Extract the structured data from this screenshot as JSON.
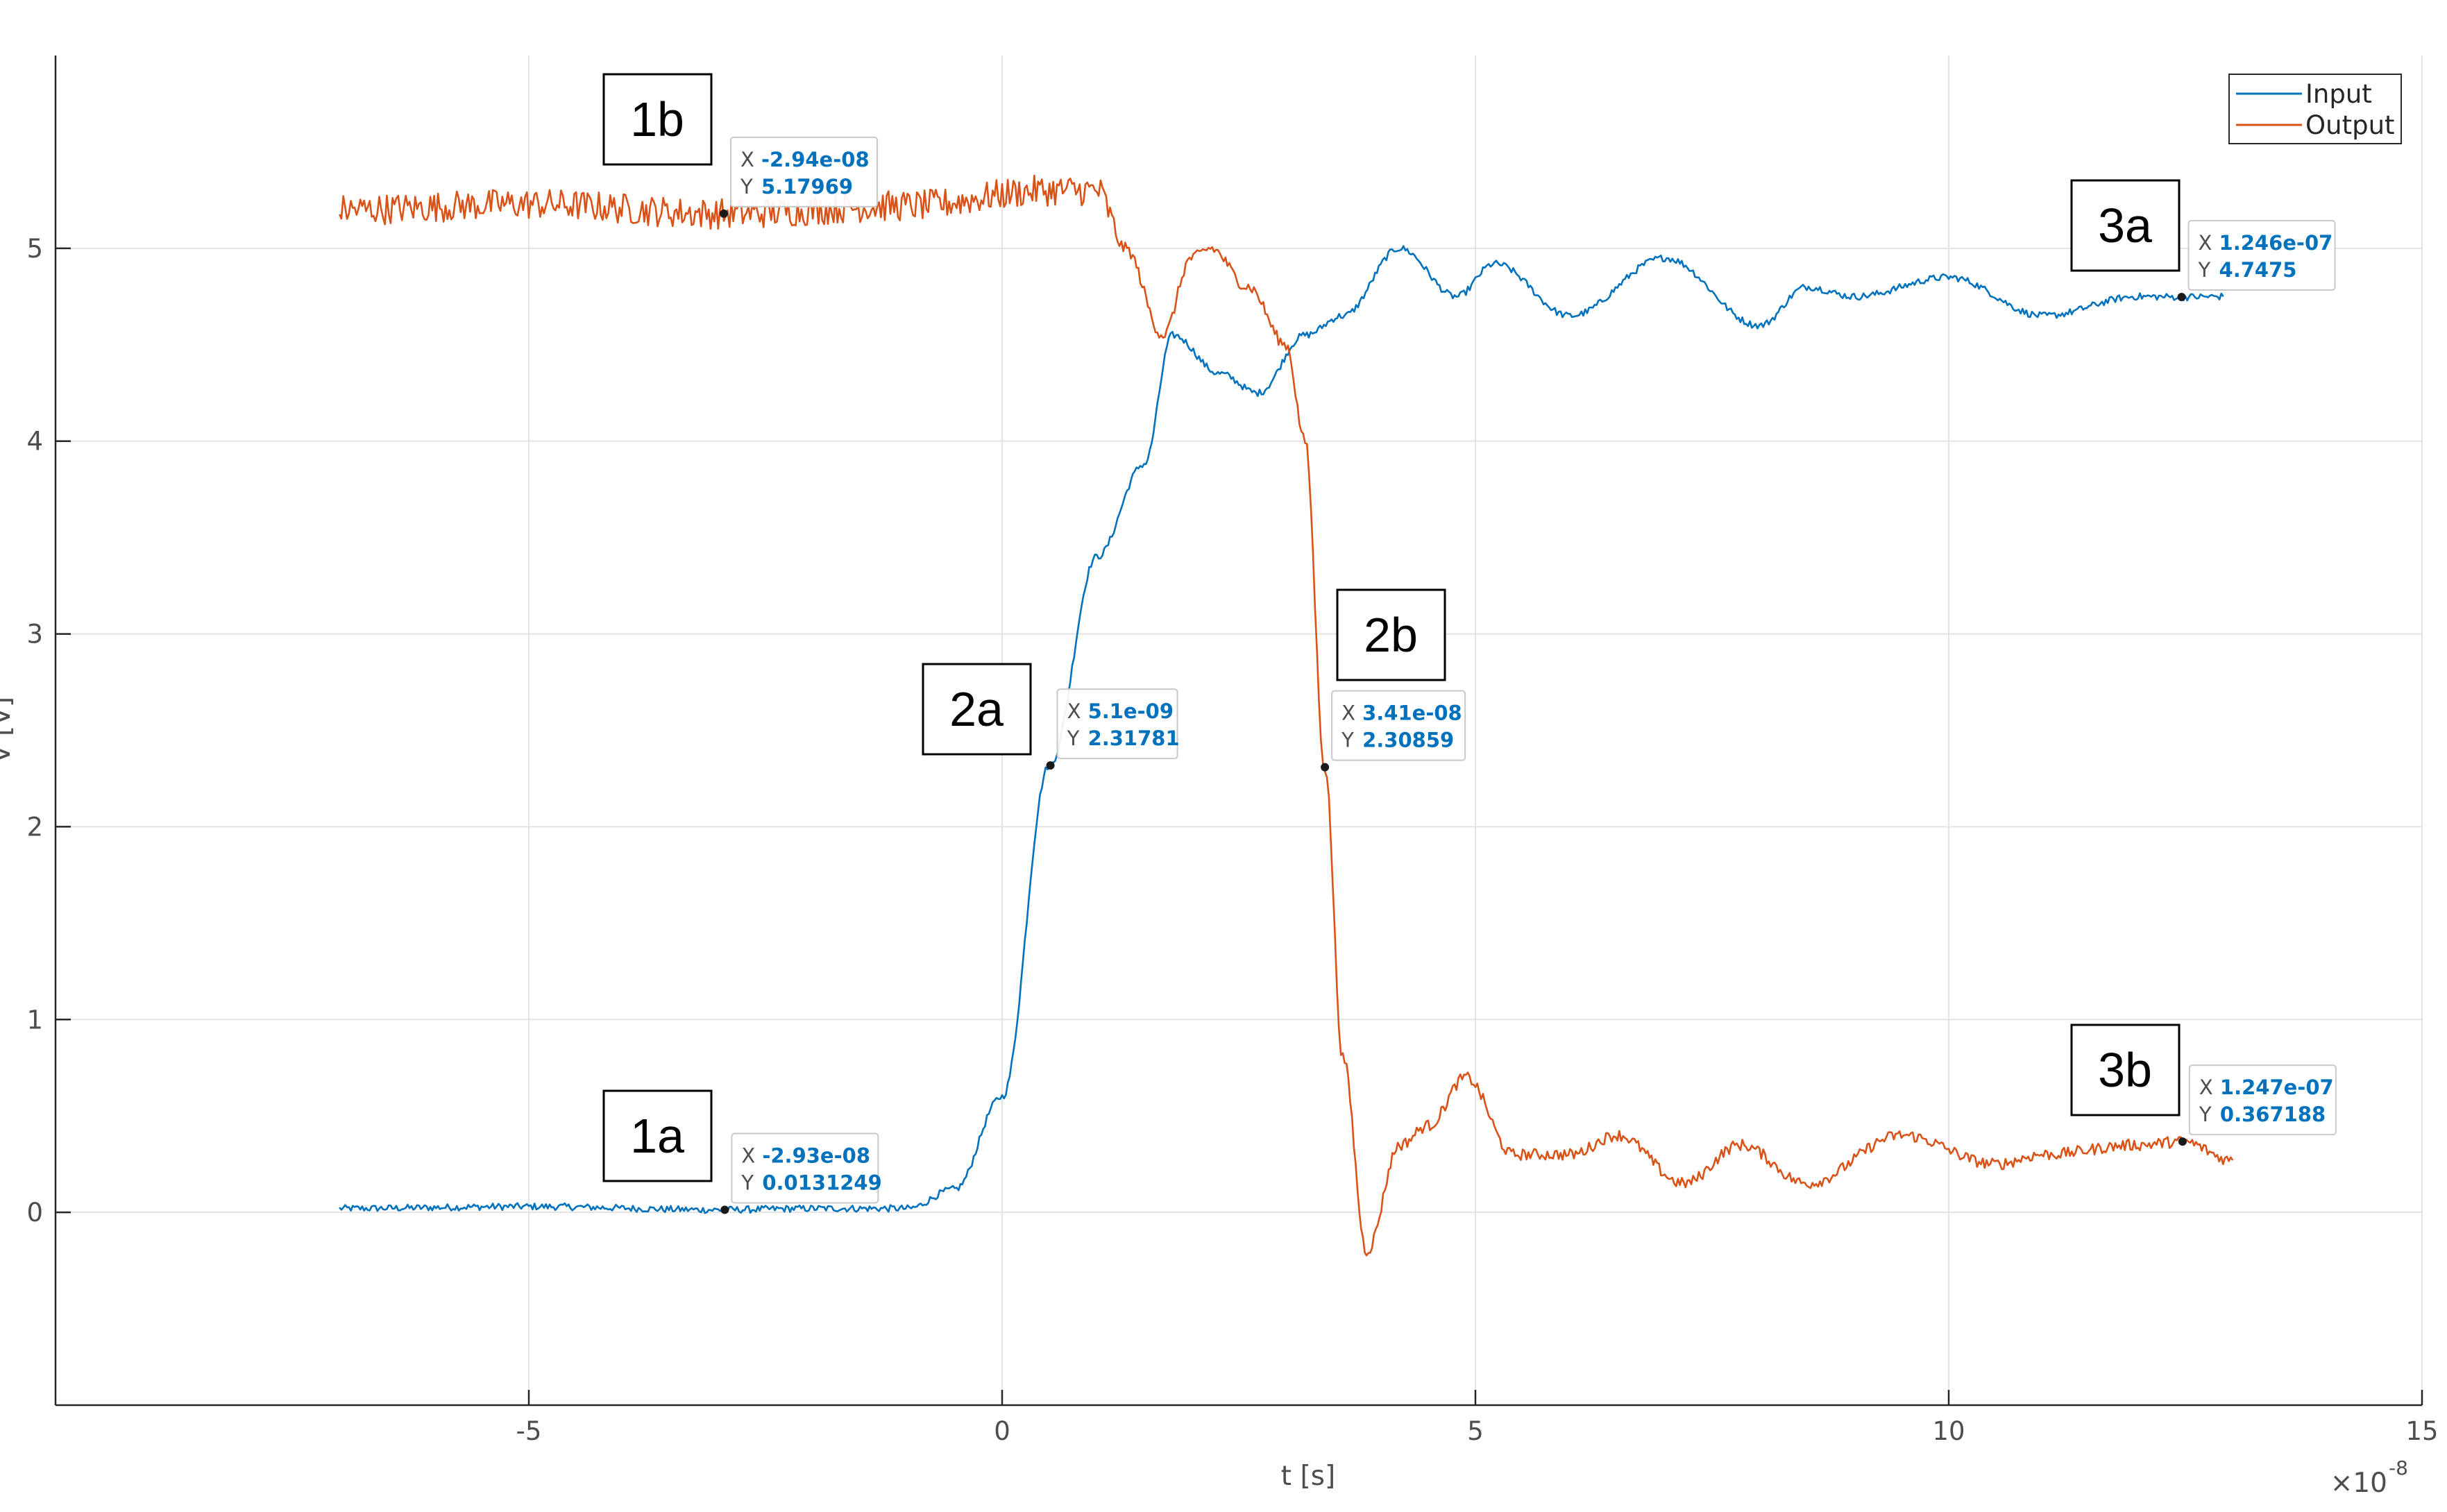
{
  "chart_data": {
    "type": "line",
    "xlabel": "t [s]",
    "ylabel": "V [V]",
    "x_exponent_label": "×10",
    "x_exponent_power": "-8",
    "xlim": [
      -10,
      15
    ],
    "ylim": [
      -1,
      6
    ],
    "xticks": [
      -5,
      0,
      5,
      10,
      15
    ],
    "xtick_labels": [
      "-5",
      "0",
      "5",
      "10",
      "15"
    ],
    "yticks": [
      0,
      1,
      2,
      3,
      4,
      5
    ],
    "ytick_labels": [
      "0",
      "1",
      "2",
      "3",
      "4",
      "5"
    ],
    "grid": true,
    "legend_position": "top-right",
    "series": [
      {
        "name": "Input",
        "color": "#0072bd",
        "x": [
          -7,
          -5,
          -3,
          -2,
          -1,
          -0.5,
          0,
          0.5,
          1,
          1.5,
          1.8,
          2.3,
          2.7,
          3.2,
          3.6,
          4.2,
          4.8,
          5.2,
          6,
          7,
          8,
          8.5,
          9,
          10,
          11,
          12,
          12.46,
          12.9
        ],
        "y": [
          0.02,
          0.03,
          0.013,
          0.02,
          0.02,
          0.12,
          0.6,
          2.32,
          3.4,
          3.88,
          4.55,
          4.35,
          4.25,
          4.55,
          4.65,
          5.0,
          4.75,
          4.92,
          4.65,
          4.95,
          4.6,
          4.8,
          4.75,
          4.85,
          4.65,
          4.75,
          4.7475,
          4.75
        ]
      },
      {
        "name": "Output",
        "color": "#d95319",
        "x": [
          -7,
          -5,
          -2.94,
          -1,
          0.5,
          1,
          1.3,
          1.7,
          2,
          2.2,
          2.6,
          3,
          3.2,
          3.41,
          3.6,
          3.85,
          4.2,
          4.5,
          4.9,
          5.4,
          6,
          6.5,
          7.2,
          7.8,
          8.5,
          9.5,
          10.5,
          11,
          12,
          12.47,
          13
        ],
        "y": [
          5.2,
          5.23,
          5.17969,
          5.22,
          5.3,
          5.3,
          5.0,
          4.55,
          4.95,
          5.0,
          4.8,
          4.5,
          4.0,
          2.30859,
          0.8,
          -0.2,
          0.35,
          0.45,
          0.7,
          0.3,
          0.3,
          0.4,
          0.15,
          0.35,
          0.15,
          0.4,
          0.25,
          0.3,
          0.35,
          0.367188,
          0.27
        ]
      }
    ],
    "datatips": [
      {
        "x_label": "-2.94e-08",
        "y_label": "5.17969",
        "x": -2.94,
        "y": 5.17969,
        "series": "Output"
      },
      {
        "x_label": "-2.93e-08",
        "y_label": "0.0131249",
        "x": -2.93,
        "y": 0.0131249,
        "series": "Input"
      },
      {
        "x_label": "5.1e-09",
        "y_label": "2.31781",
        "x": 0.51,
        "y": 2.31781,
        "series": "Input"
      },
      {
        "x_label": "3.41e-08",
        "y_label": "2.30859",
        "x": 3.41,
        "y": 2.30859,
        "series": "Output"
      },
      {
        "x_label": "1.246e-07",
        "y_label": "4.7475",
        "x": 12.46,
        "y": 4.7475,
        "series": "Input"
      },
      {
        "x_label": "1.247e-07",
        "y_label": "0.367188",
        "x": 12.47,
        "y": 0.367188,
        "series": "Output"
      }
    ],
    "callouts": [
      "1a",
      "1b",
      "2a",
      "2b",
      "3a",
      "3b"
    ]
  },
  "datatip_keys": {
    "x": "X",
    "y": "Y"
  }
}
